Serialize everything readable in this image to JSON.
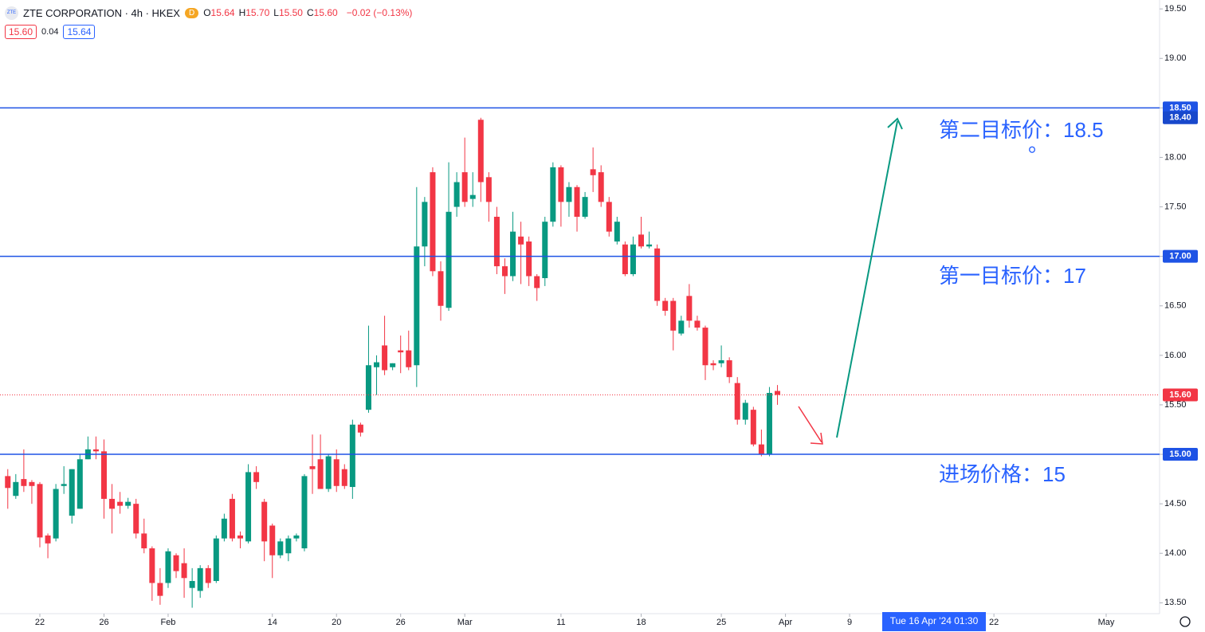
{
  "legend": {
    "symbol_icon": "ZTE",
    "title": "ZTE CORPORATION · 4h · HKEX",
    "badge": "D",
    "ohlc": [
      {
        "key": "O",
        "text": "15.64"
      },
      {
        "key": "H",
        "text": "15.70"
      },
      {
        "key": "L",
        "text": "15.50"
      },
      {
        "key": "C",
        "text": "15.60"
      }
    ],
    "change": "−0.02 (−0.13%)",
    "bid": "15.60",
    "spread": "0.04",
    "ask": "15.64"
  },
  "chart_data": {
    "type": "candlestick",
    "up_color": "#089981",
    "down_color": "#f23645",
    "line_color": "#1e53e5",
    "ylim": [
      13.39,
      19.59
    ],
    "yticks": [
      {
        "value": 13.5,
        "label": "13.50"
      },
      {
        "value": 14,
        "label": "14.00"
      },
      {
        "value": 14.5,
        "label": "14.50"
      },
      {
        "value": 15,
        "label": "15.00"
      },
      {
        "value": 15.5,
        "label": "15.50"
      },
      {
        "value": 16,
        "label": "16.00"
      },
      {
        "value": 16.5,
        "label": "16.50"
      },
      {
        "value": 17,
        "label": "17.00"
      },
      {
        "value": 17.5,
        "label": "17.50"
      },
      {
        "value": 18,
        "label": "18.00"
      },
      {
        "value": 18.5,
        "label": "18.50"
      },
      {
        "value": 19,
        "label": "19.00"
      },
      {
        "value": 19.5,
        "label": "19.50"
      }
    ],
    "hlines": [
      {
        "value": 18.5,
        "label": "18.50"
      },
      {
        "value": 17,
        "label": "17.00"
      },
      {
        "value": 15,
        "label": "15.00"
      }
    ],
    "price_labels": [
      {
        "value": 18.4,
        "label": "18.40"
      },
      {
        "value": 15.6,
        "label": "15.60"
      }
    ],
    "annotations": [
      "第二目标价：18.5",
      "。",
      "第一目标价：17",
      "进场价格：15"
    ],
    "crosshair_label": "Tue 16 Apr '24  01:30",
    "categories": [
      null,
      null,
      null,
      null,
      "22",
      null,
      null,
      null,
      null,
      null,
      null,
      null,
      "26",
      null,
      null,
      null,
      null,
      null,
      null,
      null,
      "Feb",
      null,
      null,
      null,
      null,
      null,
      null,
      null,
      null,
      null,
      null,
      null,
      null,
      "14",
      null,
      null,
      null,
      null,
      null,
      null,
      null,
      "20",
      null,
      null,
      null,
      null,
      null,
      null,
      null,
      "26",
      null,
      null,
      null,
      null,
      null,
      null,
      null,
      "Mar",
      null,
      null,
      null,
      null,
      null,
      null,
      null,
      null,
      null,
      null,
      null,
      "11",
      null,
      null,
      null,
      null,
      null,
      null,
      null,
      null,
      null,
      "18",
      null,
      null,
      null,
      null,
      null,
      null,
      null,
      null,
      null,
      "25",
      null,
      null,
      null,
      null,
      null,
      null,
      null,
      "Apr",
      null,
      null,
      null,
      null,
      null,
      null,
      null,
      "9",
      null,
      null,
      null,
      null,
      null,
      null,
      null,
      null,
      null,
      null,
      null,
      null,
      null,
      null,
      null,
      null,
      null,
      "22",
      null,
      null,
      null,
      null,
      null,
      null,
      null,
      null,
      null,
      null,
      null,
      null,
      null,
      "May",
      null,
      null,
      null,
      null,
      null,
      null
    ],
    "open": [
      14.78,
      14.58,
      14.75,
      14.72,
      14.7,
      14.18,
      14.15,
      14.68,
      14.38,
      14.45,
      14.95,
      15.05,
      15.03,
      14.55,
      14.52,
      14.48,
      14.5,
      14.2,
      14.05,
      13.7,
      13.7,
      13.98,
      13.9,
      13.65,
      13.62,
      13.85,
      13.72,
      14.15,
      14.55,
      14.18,
      14.12,
      14.82,
      14.52,
      14.28,
      13.98,
      14.0,
      14.15,
      14.05,
      14.88,
      14.95,
      14.65,
      14.95,
      14.85,
      14.67,
      15.3,
      15.45,
      15.88,
      16.1,
      15.88,
      16.05,
      16.05,
      15.9,
      17.1,
      17.85,
      16.85,
      16.48,
      17.5,
      17.85,
      17.58,
      18.38,
      17.8,
      17.4,
      16.9,
      16.8,
      17.2,
      17.15,
      16.8,
      16.78,
      17.35,
      17.9,
      17.55,
      17.7,
      17.4,
      17.88,
      17.85,
      17.55,
      17.15,
      17.12,
      16.82,
      17.22,
      17.1,
      17.08,
      16.55,
      16.55,
      16.22,
      16.6,
      16.35,
      16.28,
      15.92,
      15.92,
      15.95,
      15.72,
      15.35,
      15.45,
      15.1,
      15.0,
      15.64,
      null,
      null,
      null,
      null,
      null,
      null,
      null,
      null,
      null,
      null,
      null,
      null,
      null,
      null,
      null,
      null,
      null,
      null,
      null,
      null,
      null,
      null,
      null,
      null,
      null,
      null,
      null,
      null,
      null,
      null,
      null,
      null,
      null,
      null,
      null,
      null,
      null,
      null,
      null,
      null,
      null,
      null,
      null,
      null,
      null,
      null,
      null
    ],
    "high": [
      14.85,
      14.8,
      15.05,
      14.74,
      14.72,
      14.2,
      14.7,
      14.88,
      14.85,
      15.0,
      15.18,
      15.18,
      15.15,
      14.7,
      14.62,
      14.56,
      14.55,
      14.35,
      14.07,
      13.85,
      14.05,
      14.0,
      14.05,
      13.85,
      13.88,
      13.88,
      14.18,
      14.4,
      14.6,
      14.22,
      14.9,
      14.88,
      14.55,
      14.3,
      14.15,
      14.18,
      14.2,
      14.8,
      15.2,
      15.2,
      15.0,
      15.05,
      14.9,
      15.35,
      15.32,
      16.3,
      16.0,
      16.4,
      15.92,
      16.2,
      16.25,
      17.7,
      17.6,
      17.9,
      16.95,
      17.95,
      17.85,
      18.2,
      17.85,
      18.4,
      17.85,
      17.5,
      16.98,
      17.45,
      17.35,
      17.2,
      16.82,
      17.4,
      17.95,
      17.92,
      17.75,
      17.72,
      17.65,
      18.1,
      17.92,
      17.6,
      17.4,
      17.15,
      17.2,
      17.4,
      17.25,
      17.12,
      16.58,
      16.58,
      16.4,
      16.72,
      16.4,
      16.3,
      15.95,
      16.1,
      15.98,
      15.78,
      15.55,
      15.48,
      15.25,
      15.68,
      15.7,
      null,
      null,
      null,
      null,
      null,
      null,
      null,
      null,
      null,
      null,
      null,
      null,
      null,
      null,
      null,
      null,
      null,
      null,
      null,
      null,
      null,
      null,
      null,
      null,
      null,
      null,
      null,
      null,
      null,
      null,
      null,
      null,
      null,
      null,
      null,
      null,
      null,
      null,
      null,
      null,
      null,
      null,
      null,
      null,
      null,
      null,
      null
    ],
    "low": [
      14.45,
      14.55,
      14.62,
      14.5,
      14.06,
      13.95,
      14.12,
      14.6,
      14.3,
      14.45,
      14.95,
      14.95,
      14.35,
      14.2,
      14.4,
      14.45,
      14.15,
      14.0,
      13.52,
      13.48,
      13.65,
      13.75,
      13.55,
      13.45,
      13.55,
      13.65,
      13.7,
      14.12,
      14.12,
      14.05,
      14.1,
      14.65,
      13.92,
      13.75,
      13.95,
      13.92,
      14.12,
      14.02,
      14.6,
      14.65,
      14.62,
      14.62,
      14.65,
      14.55,
      15.18,
      15.42,
      15.6,
      15.8,
      15.85,
      15.82,
      15.85,
      15.68,
      16.9,
      16.8,
      16.35,
      16.45,
      17.4,
      17.5,
      17.5,
      17.55,
      17.35,
      16.82,
      16.62,
      16.75,
      16.72,
      16.7,
      16.55,
      16.7,
      17.3,
      17.3,
      17.4,
      17.25,
      17.38,
      17.65,
      17.5,
      17.2,
      17.12,
      16.8,
      16.8,
      17.08,
      17.08,
      16.5,
      16.4,
      16.05,
      16.2,
      16.28,
      16.25,
      15.75,
      15.85,
      15.88,
      15.72,
      15.3,
      15.3,
      15.08,
      14.98,
      14.98,
      15.5,
      null,
      null,
      null,
      null,
      null,
      null,
      null,
      null,
      null,
      null,
      null,
      null,
      null,
      null,
      null,
      null,
      null,
      null,
      null,
      null,
      null,
      null,
      null,
      null,
      null,
      null,
      null,
      null,
      null,
      null,
      null,
      null,
      null,
      null,
      null,
      null,
      null,
      null,
      null,
      null,
      null,
      null,
      null,
      null,
      null,
      null,
      null
    ],
    "close": [
      14.66,
      14.72,
      14.68,
      14.68,
      14.16,
      14.1,
      14.65,
      14.7,
      14.85,
      14.95,
      15.05,
      15.03,
      14.55,
      14.45,
      14.48,
      14.52,
      14.2,
      14.05,
      13.7,
      13.57,
      14.02,
      13.82,
      13.75,
      13.72,
      13.85,
      13.7,
      14.15,
      14.35,
      14.15,
      14.15,
      14.82,
      14.72,
      14.12,
      13.98,
      14.12,
      14.15,
      14.18,
      14.78,
      14.85,
      14.65,
      14.98,
      14.68,
      14.68,
      15.3,
      15.22,
      15.9,
      15.93,
      15.85,
      15.92,
      16.03,
      15.88,
      17.1,
      17.55,
      16.85,
      16.5,
      17.45,
      17.75,
      17.55,
      17.62,
      17.75,
      17.55,
      16.9,
      16.8,
      17.25,
      17.12,
      16.8,
      16.68,
      17.35,
      17.9,
      17.55,
      17.7,
      17.4,
      17.6,
      17.82,
      17.55,
      17.25,
      17.35,
      16.82,
      17.12,
      17.1,
      17.12,
      16.55,
      16.45,
      16.25,
      16.35,
      16.35,
      16.28,
      15.9,
      15.9,
      15.95,
      15.78,
      15.35,
      15.52,
      15.1,
      15.0,
      15.62,
      15.6,
      null,
      null,
      null,
      null,
      null,
      null,
      null,
      null,
      null,
      null,
      null,
      null,
      null,
      null,
      null,
      null,
      null,
      null,
      null,
      null,
      null,
      null,
      null,
      null,
      null,
      null,
      null,
      null,
      null,
      null,
      null,
      null,
      null,
      null,
      null,
      null,
      null,
      null,
      null,
      null,
      null,
      null,
      null,
      null,
      null,
      null,
      null
    ]
  }
}
